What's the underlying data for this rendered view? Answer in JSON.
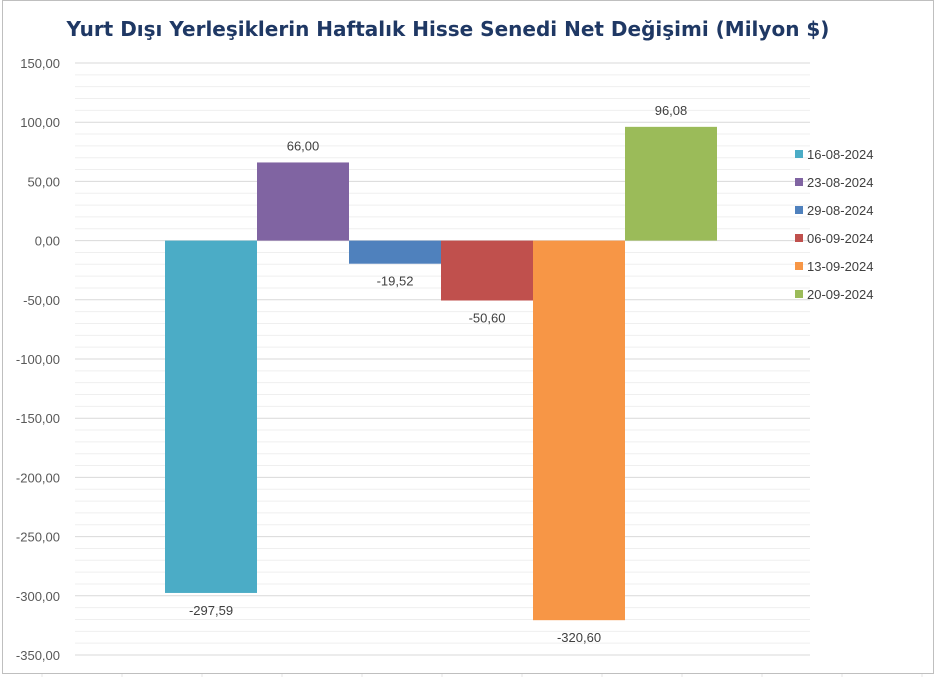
{
  "chart_data": {
    "type": "bar",
    "title": "Yurt Dışı Yerleşiklerin Haftalık Hisse Senedi Net Değişimi (Milyon $)",
    "xlabel": "",
    "ylabel": "",
    "ylim": [
      -350,
      150
    ],
    "y_ticks": [
      "150,00",
      "100,00",
      "50,00",
      "0,00",
      "-50,00",
      "-100,00",
      "-150,00",
      "-200,00",
      "-250,00",
      "-300,00",
      "-350,00"
    ],
    "y_tick_values": [
      150,
      100,
      50,
      0,
      -50,
      -100,
      -150,
      -200,
      -250,
      -300,
      -350
    ],
    "grid": true,
    "legend_position": "right",
    "series": [
      {
        "name": "16-08-2024",
        "value": -297.59,
        "label": "-297,59",
        "color": "#4bacc6"
      },
      {
        "name": "23-08-2024",
        "value": 66.0,
        "label": "66,00",
        "color": "#8064a2"
      },
      {
        "name": "29-08-2024",
        "value": -19.52,
        "label": "-19,52",
        "color": "#4f81bd"
      },
      {
        "name": "06-09-2024",
        "value": -50.6,
        "label": "-50,60",
        "color": "#c0504d"
      },
      {
        "name": "13-09-2024",
        "value": -320.6,
        "label": "-320,60",
        "color": "#f79646"
      },
      {
        "name": "20-09-2024",
        "value": 96.08,
        "label": "96,08",
        "color": "#9bbb59"
      }
    ]
  }
}
